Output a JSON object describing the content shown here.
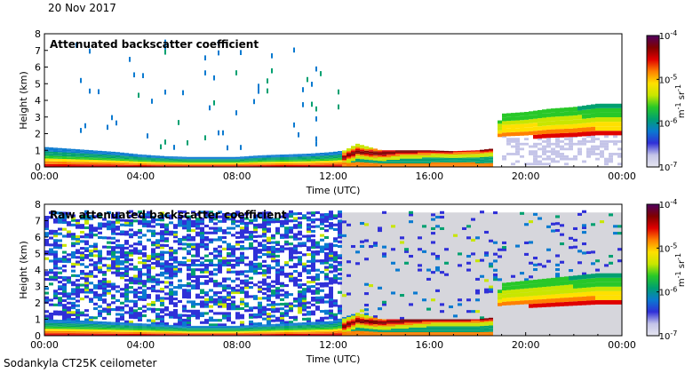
{
  "header": {
    "date": "20 Nov 2017"
  },
  "footer": {
    "instrument": "Sodankyla CT25K ceilometer"
  },
  "colors": {
    "ramp": [
      "#e6e6f0",
      "#c4c4e8",
      "#3030d8",
      "#0a7ad0",
      "#00a070",
      "#28c828",
      "#c8e600",
      "#ffe000",
      "#ff8000",
      "#e00000",
      "#800000",
      "#500060"
    ],
    "background": "#ffffff",
    "panel_gray": "#d6d6dc"
  },
  "chart_data": [
    {
      "type": "heatmap",
      "title": "Attenuated backscatter coefficient",
      "xlabel": "Time (UTC)",
      "ylabel": "Height (km)",
      "x_ticks": [
        "00:00",
        "04:00",
        "08:00",
        "12:00",
        "16:00",
        "20:00",
        "00:00"
      ],
      "y_ticks": [
        "0",
        "1",
        "2",
        "3",
        "4",
        "5",
        "6",
        "7",
        "8"
      ],
      "xlim_hours": [
        0,
        24
      ],
      "ylim_km": [
        0,
        8
      ],
      "colorbar": {
        "unit_base": "m",
        "unit_exp": "-1",
        "unit_base2": "sr",
        "unit_exp2": "-1",
        "ticks": [
          {
            "base": "10",
            "exp": "-4"
          },
          {
            "base": "10",
            "exp": "-5"
          },
          {
            "base": "10",
            "exp": "-6"
          },
          {
            "base": "10",
            "exp": "-7"
          }
        ],
        "range_log10": [
          -7,
          -4
        ]
      },
      "background_noise": "low",
      "layer_top_km": [
        [
          0,
          1.2
        ],
        [
          1,
          1.1
        ],
        [
          2,
          1.0
        ],
        [
          3,
          0.9
        ],
        [
          4,
          0.75
        ],
        [
          5,
          0.65
        ],
        [
          6,
          0.6
        ],
        [
          7,
          0.6
        ],
        [
          8,
          0.6
        ],
        [
          9,
          0.7
        ],
        [
          10,
          0.75
        ],
        [
          11,
          0.8
        ],
        [
          12,
          0.9
        ],
        [
          12.5,
          1.0
        ],
        [
          13,
          1.4
        ],
        [
          14,
          1.0
        ],
        [
          15,
          1.0
        ],
        [
          16,
          1.0
        ],
        [
          17,
          0.95
        ],
        [
          18,
          1.0
        ],
        [
          18.6,
          1.1
        ],
        [
          19,
          3.2
        ],
        [
          20,
          3.3
        ],
        [
          21,
          3.5
        ],
        [
          22,
          3.6
        ],
        [
          23,
          3.8
        ],
        [
          24,
          3.8
        ]
      ],
      "cloud_base_km": [
        [
          12.3,
          0.5
        ],
        [
          13,
          0.9
        ],
        [
          14,
          0.8
        ],
        [
          15,
          0.95
        ],
        [
          16,
          1.0
        ],
        [
          17,
          1.0
        ],
        [
          18,
          1.05
        ],
        [
          18.6,
          1.1
        ],
        [
          19,
          1.8
        ],
        [
          20,
          1.9
        ],
        [
          21,
          2.0
        ],
        [
          22,
          2.0
        ],
        [
          23,
          2.0
        ],
        [
          24,
          2.0
        ]
      ]
    },
    {
      "type": "heatmap",
      "title": "Raw attenuated backscatter coefficient",
      "xlabel": "Time (UTC)",
      "ylabel": "Height (km)",
      "x_ticks": [
        "00:00",
        "04:00",
        "08:00",
        "12:00",
        "16:00",
        "20:00",
        "00:00"
      ],
      "y_ticks": [
        "0",
        "1",
        "2",
        "3",
        "4",
        "5",
        "6",
        "7",
        "8"
      ],
      "xlim_hours": [
        0,
        24
      ],
      "ylim_km": [
        0,
        8
      ],
      "colorbar": {
        "unit_base": "m",
        "unit_exp": "-1",
        "unit_base2": "sr",
        "unit_exp2": "-1",
        "ticks": [
          {
            "base": "10",
            "exp": "-4"
          },
          {
            "base": "10",
            "exp": "-5"
          },
          {
            "base": "10",
            "exp": "-6"
          },
          {
            "base": "10",
            "exp": "-7"
          }
        ],
        "range_log10": [
          -7,
          -4
        ]
      },
      "background_noise": "high",
      "noise_top_km": 7.5,
      "layer_top_km": [
        [
          0,
          1.0
        ],
        [
          2,
          0.9
        ],
        [
          4,
          0.75
        ],
        [
          6,
          0.6
        ],
        [
          8,
          0.6
        ],
        [
          10,
          0.75
        ],
        [
          12,
          0.9
        ],
        [
          13,
          1.4
        ],
        [
          14,
          1.0
        ],
        [
          16,
          1.0
        ],
        [
          18,
          1.0
        ],
        [
          18.6,
          1.1
        ],
        [
          19,
          3.2
        ],
        [
          21,
          3.5
        ],
        [
          23,
          3.8
        ],
        [
          24,
          3.8
        ]
      ],
      "cloud_base_km": [
        [
          12.3,
          0.5
        ],
        [
          13,
          0.9
        ],
        [
          14,
          0.8
        ],
        [
          16,
          1.0
        ],
        [
          18,
          1.05
        ],
        [
          18.6,
          1.1
        ],
        [
          19,
          1.8
        ],
        [
          21,
          2.0
        ],
        [
          24,
          2.0
        ]
      ]
    }
  ]
}
